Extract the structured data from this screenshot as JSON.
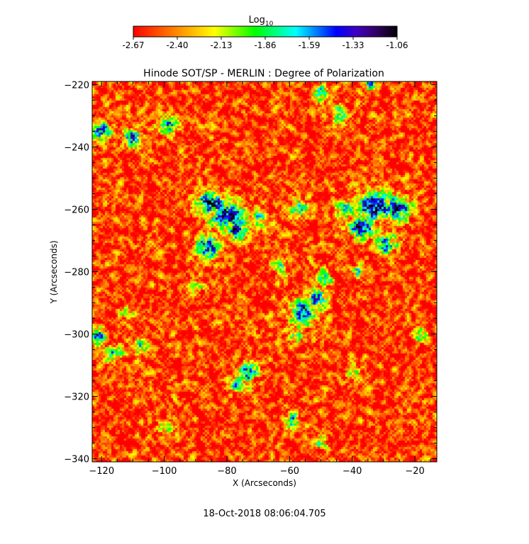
{
  "chart_data": {
    "type": "heatmap",
    "title": "Hinode SOT/SP - MERLIN : Degree of Polarization",
    "xlabel": "X (Arcseconds)",
    "ylabel": "Y (Arcseconds)",
    "xlim": [
      -123,
      -13
    ],
    "ylim": [
      -341,
      -219
    ],
    "x_ticks": [
      -120,
      -100,
      -80,
      -60,
      -40,
      -20
    ],
    "y_ticks": [
      -220,
      -240,
      -260,
      -280,
      -300,
      -320,
      -340
    ],
    "colorbar": {
      "label": "Log",
      "label_subscript": "10",
      "range": [
        -2.67,
        -1.06
      ],
      "tick_labels": [
        "-2.67",
        "-2.40",
        "-2.13",
        "-1.86",
        "-1.59",
        "-1.33",
        "-1.06"
      ],
      "colormap": [
        "#ff0000",
        "#ff4000",
        "#ff8000",
        "#ffc000",
        "#ffff00",
        "#80ff00",
        "#00ff00",
        "#00ff80",
        "#00ffff",
        "#0080ff",
        "#0000ff",
        "#4000c0",
        "#300060",
        "#000000"
      ]
    },
    "timestamp": "18-Oct-2018 08:06:04.705",
    "background_level": -2.55,
    "features": [
      {
        "x": -85,
        "y": -258,
        "sx": 3.5,
        "sy": 2.5,
        "v": -1.3
      },
      {
        "x": -80,
        "y": -262,
        "sx": 4,
        "sy": 3,
        "v": -1.25
      },
      {
        "x": -86,
        "y": -272,
        "sx": 2.5,
        "sy": 2.5,
        "v": -1.4
      },
      {
        "x": -77,
        "y": -267,
        "sx": 2.5,
        "sy": 2,
        "v": -1.45
      },
      {
        "x": -70,
        "y": -263,
        "sx": 2,
        "sy": 2,
        "v": -1.8
      },
      {
        "x": -33,
        "y": -259,
        "sx": 4,
        "sy": 3,
        "v": -1.15
      },
      {
        "x": -26,
        "y": -260,
        "sx": 3,
        "sy": 2.5,
        "v": -1.2
      },
      {
        "x": -37,
        "y": -266,
        "sx": 3,
        "sy": 2.5,
        "v": -1.35
      },
      {
        "x": -29,
        "y": -271,
        "sx": 2.5,
        "sy": 2,
        "v": -1.55
      },
      {
        "x": -42,
        "y": -260,
        "sx": 2,
        "sy": 2,
        "v": -1.75
      },
      {
        "x": -56,
        "y": -293,
        "sx": 2.5,
        "sy": 3,
        "v": -1.4
      },
      {
        "x": -51,
        "y": -289,
        "sx": 2,
        "sy": 2.5,
        "v": -1.55
      },
      {
        "x": -49,
        "y": -282,
        "sx": 1.8,
        "sy": 2,
        "v": -1.8
      },
      {
        "x": -58,
        "y": -300,
        "sx": 1.5,
        "sy": 2,
        "v": -1.85
      },
      {
        "x": -57,
        "y": -260,
        "sx": 1.8,
        "sy": 2,
        "v": -1.7
      },
      {
        "x": -63,
        "y": -279,
        "sx": 1.5,
        "sy": 2,
        "v": -1.9
      },
      {
        "x": -110,
        "y": -237,
        "sx": 2,
        "sy": 1.8,
        "v": -1.5
      },
      {
        "x": -120,
        "y": -235,
        "sx": 2,
        "sy": 2,
        "v": -1.6
      },
      {
        "x": -99,
        "y": -233,
        "sx": 2.5,
        "sy": 1.8,
        "v": -1.65
      },
      {
        "x": -44,
        "y": -230,
        "sx": 1.5,
        "sy": 2.5,
        "v": -1.8
      },
      {
        "x": -50,
        "y": -223,
        "sx": 1.5,
        "sy": 2,
        "v": -1.85
      },
      {
        "x": -34,
        "y": -220,
        "sx": 1.5,
        "sy": 1.5,
        "v": -1.8
      },
      {
        "x": -121,
        "y": -301,
        "sx": 1.5,
        "sy": 2,
        "v": -1.55
      },
      {
        "x": -116,
        "y": -306,
        "sx": 2,
        "sy": 1.5,
        "v": -1.7
      },
      {
        "x": -108,
        "y": -304,
        "sx": 1.8,
        "sy": 1.5,
        "v": -1.85
      },
      {
        "x": -73,
        "y": -312,
        "sx": 2,
        "sy": 2.5,
        "v": -1.55
      },
      {
        "x": -77,
        "y": -316,
        "sx": 1.8,
        "sy": 1.8,
        "v": -1.7
      },
      {
        "x": -59,
        "y": -328,
        "sx": 1.5,
        "sy": 2,
        "v": -1.75
      },
      {
        "x": -50,
        "y": -335,
        "sx": 1.5,
        "sy": 1.5,
        "v": -1.85
      },
      {
        "x": -18,
        "y": -300,
        "sx": 1.5,
        "sy": 1.5,
        "v": -1.8
      },
      {
        "x": -38,
        "y": -280,
        "sx": 1.2,
        "sy": 1.5,
        "v": -1.75
      },
      {
        "x": -112,
        "y": -293,
        "sx": 1.5,
        "sy": 1.5,
        "v": -1.95
      },
      {
        "x": -90,
        "y": -285,
        "sx": 1.5,
        "sy": 1.5,
        "v": -2.05
      },
      {
        "x": -40,
        "y": -312,
        "sx": 1.5,
        "sy": 1.5,
        "v": -2.0
      },
      {
        "x": -100,
        "y": -330,
        "sx": 2,
        "sy": 2,
        "v": -2.1
      }
    ]
  }
}
